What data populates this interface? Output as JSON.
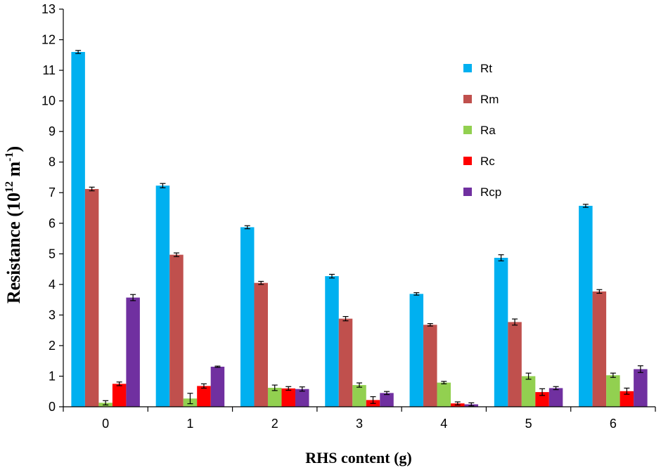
{
  "chart_data": {
    "type": "bar",
    "title": "",
    "xlabel": "RHS content (g)",
    "ylabel_main": "Resistance (10",
    "ylabel_sup1": "12",
    "ylabel_mid": " m",
    "ylabel_sup2": "-1",
    "ylabel_end": ")",
    "ylim": [
      0,
      13
    ],
    "yticks": [
      0,
      1,
      2,
      3,
      4,
      5,
      6,
      7,
      8,
      9,
      10,
      11,
      12,
      13
    ],
    "categories": [
      "0",
      "1",
      "2",
      "3",
      "4",
      "5",
      "6"
    ],
    "grid": false,
    "legend_position": "right",
    "series": [
      {
        "name": "Rt",
        "color": "#00B0F0",
        "values": [
          11.6,
          7.23,
          5.87,
          4.27,
          3.69,
          4.87,
          6.57
        ],
        "errors": [
          0.05,
          0.07,
          0.05,
          0.06,
          0.04,
          0.1,
          0.05
        ]
      },
      {
        "name": "Rm",
        "color": "#C0504D",
        "values": [
          7.12,
          4.97,
          4.05,
          2.88,
          2.68,
          2.77,
          3.77
        ],
        "errors": [
          0.06,
          0.06,
          0.05,
          0.07,
          0.04,
          0.1,
          0.06
        ]
      },
      {
        "name": "Ra",
        "color": "#92D050",
        "values": [
          0.13,
          0.27,
          0.62,
          0.71,
          0.79,
          1.0,
          1.03
        ],
        "errors": [
          0.07,
          0.17,
          0.09,
          0.07,
          0.04,
          0.1,
          0.07
        ]
      },
      {
        "name": "Rc",
        "color": "#FF0000",
        "values": [
          0.75,
          0.68,
          0.6,
          0.22,
          0.11,
          0.48,
          0.51
        ],
        "errors": [
          0.06,
          0.07,
          0.06,
          0.11,
          0.05,
          0.11,
          0.1
        ]
      },
      {
        "name": "Rcp",
        "color": "#7030A0",
        "values": [
          3.57,
          1.31,
          0.58,
          0.45,
          0.08,
          0.61,
          1.23
        ],
        "errors": [
          0.1,
          0.02,
          0.07,
          0.05,
          0.05,
          0.05,
          0.11
        ]
      }
    ]
  }
}
